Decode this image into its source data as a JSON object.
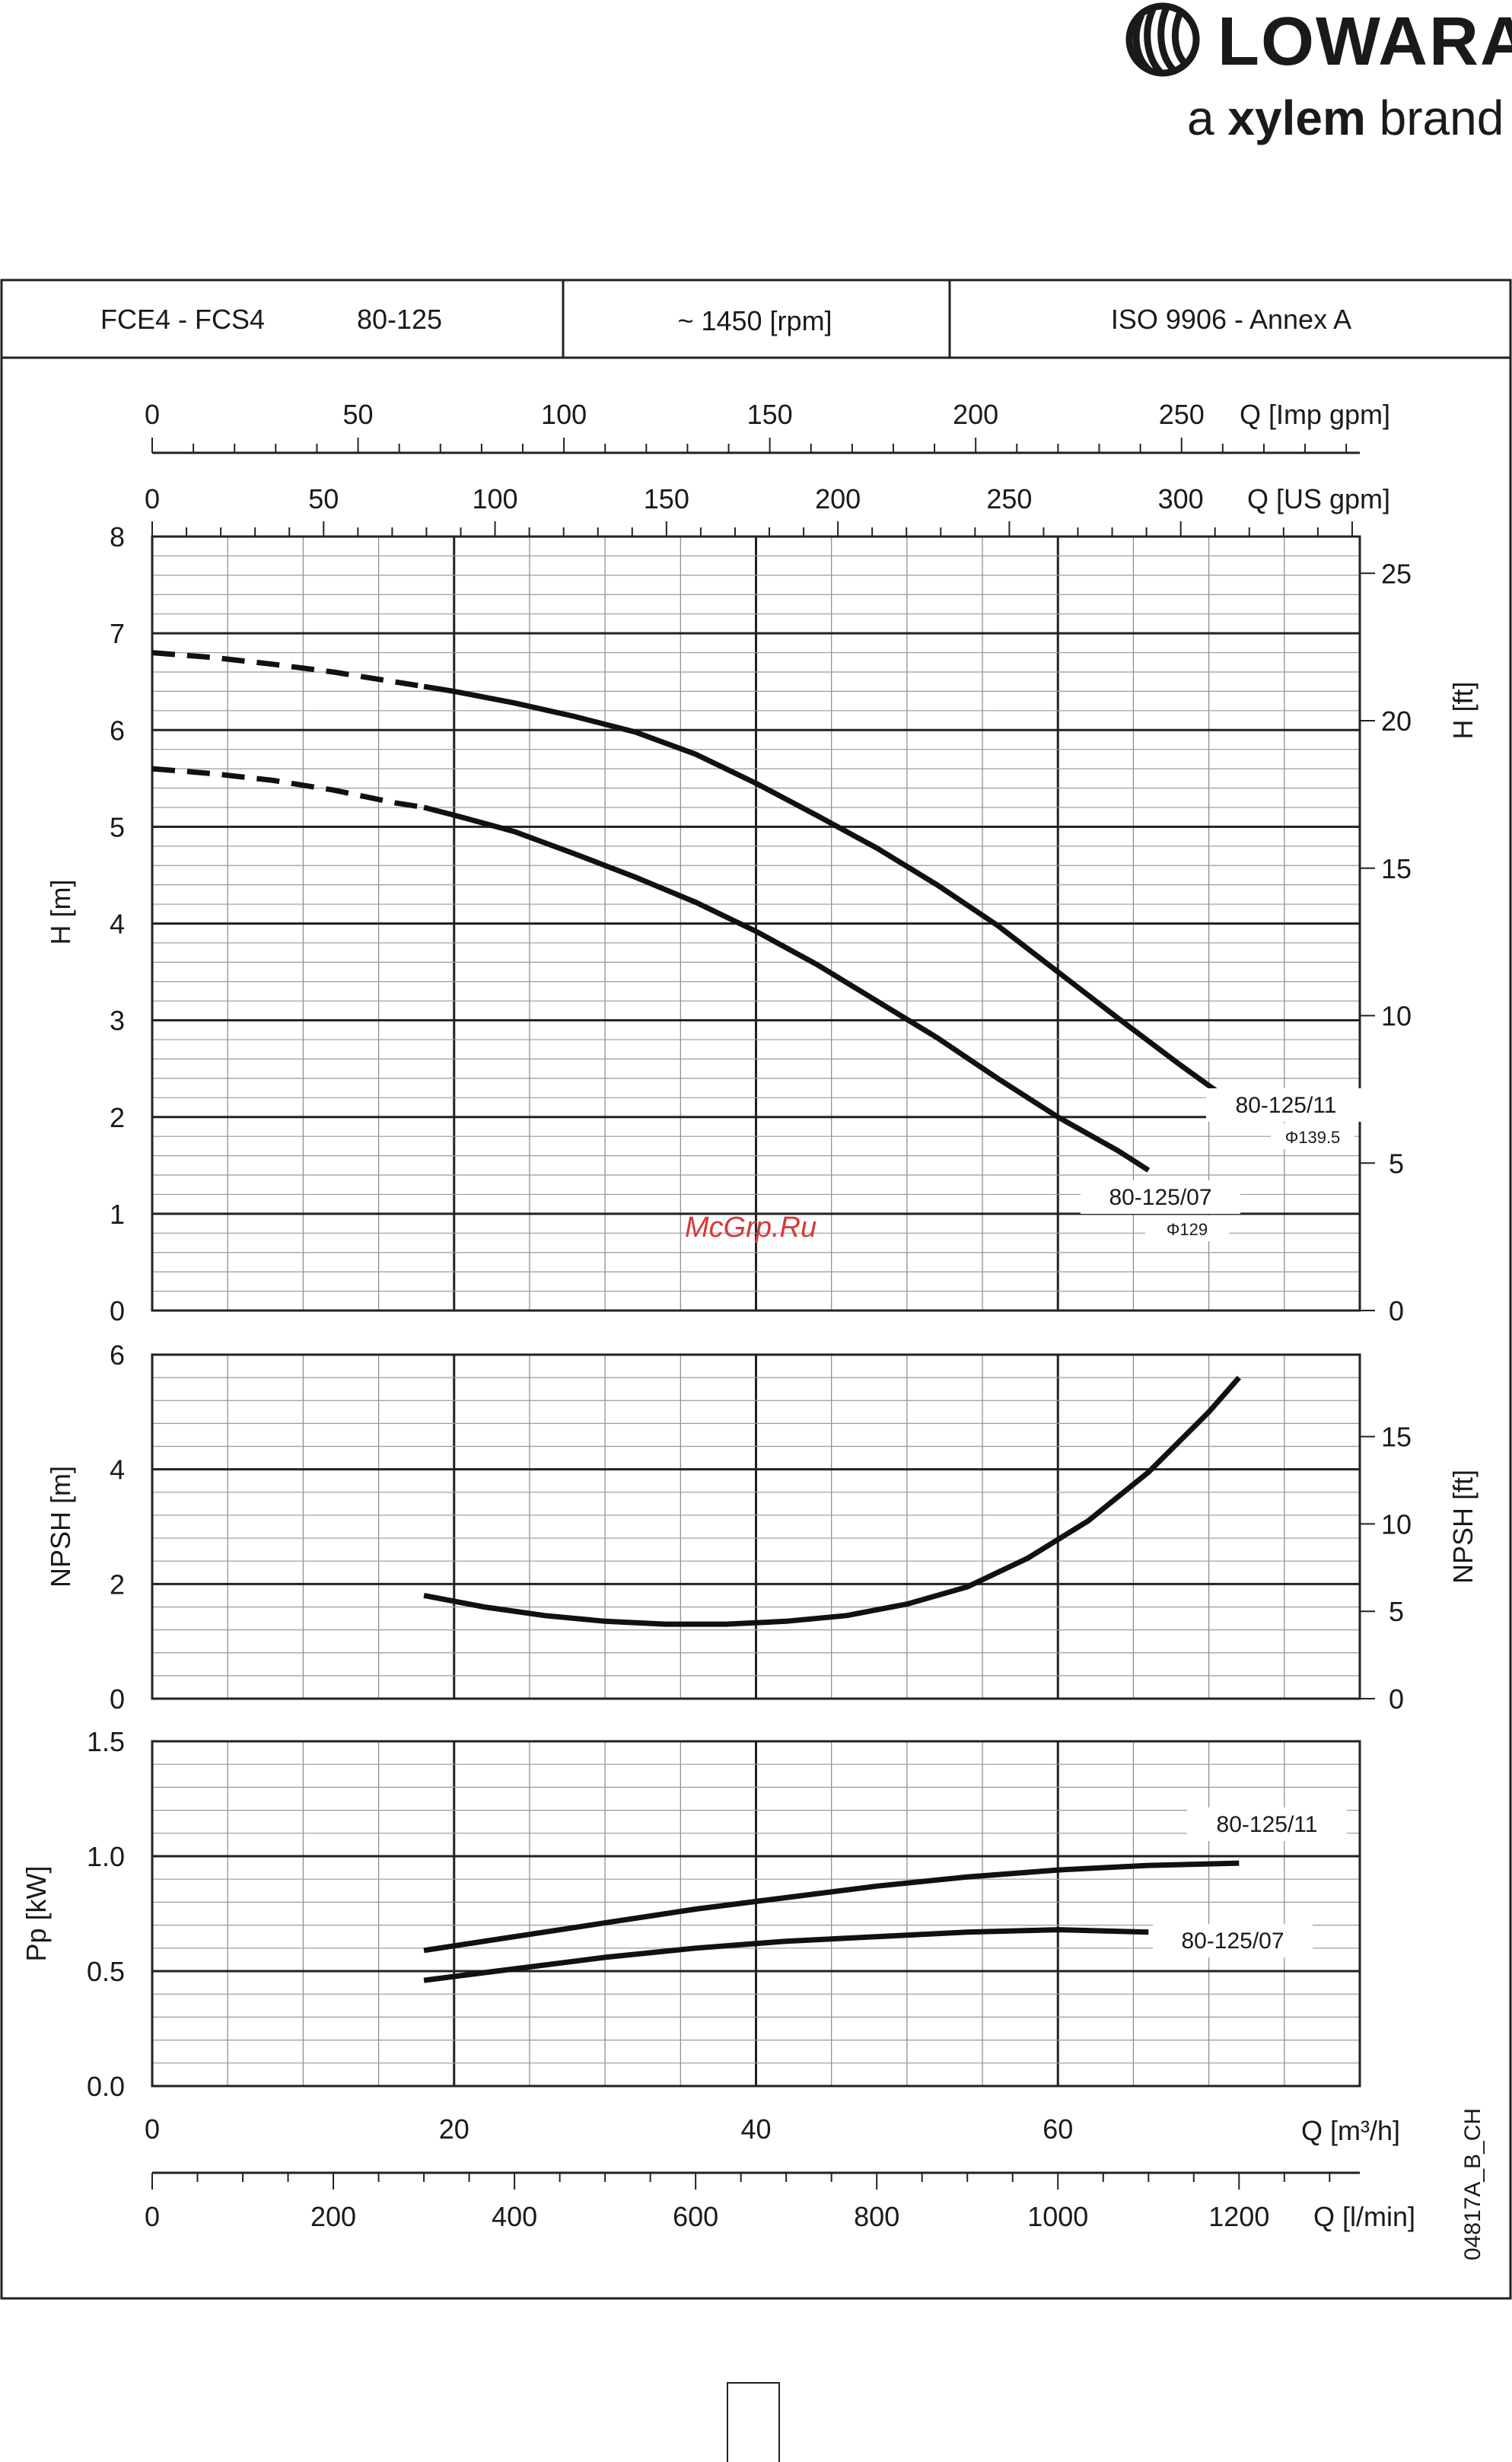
{
  "brand": {
    "name": "LOWARA",
    "tagline_prefix": "a",
    "tagline_brand": "xylem",
    "tagline_suffix": "brand",
    "logo_icon": "lowara-swirl-icon"
  },
  "header": {
    "model": "FCE4 - FCS4",
    "size": "80-125",
    "speed": "~ 1450 [rpm]",
    "standard": "ISO 9906 - Annex A"
  },
  "watermark": "McGrp.Ru",
  "doc_code": "04817A_B_CH",
  "axes": {
    "imp_gpm": {
      "label": "Q [Imp gpm]",
      "ticks": [
        0,
        50,
        100,
        150,
        200,
        250
      ],
      "factor_per_m3h": 3.6662
    },
    "us_gpm": {
      "label": "Q [US gpm]",
      "ticks": [
        0,
        50,
        100,
        150,
        200,
        250,
        300
      ],
      "factor_per_m3h": 4.4029
    },
    "m3h": {
      "label": "Q [m³/h]",
      "ticks": [
        0,
        20,
        40,
        60
      ],
      "range": [
        0,
        80
      ]
    },
    "lmin": {
      "label": "Q [l/min]",
      "ticks": [
        0,
        200,
        400,
        600,
        800,
        1000,
        1200
      ],
      "factor_per_m3h": 16.6667
    }
  },
  "chart_data": [
    {
      "type": "line",
      "ylabel": "H [m]",
      "y2label": "H [ft]",
      "xlim": [
        0,
        80
      ],
      "ylim": [
        0,
        8
      ],
      "yticks": [
        0,
        1,
        2,
        3,
        4,
        5,
        6,
        7,
        8
      ],
      "y2ticks": [
        0,
        5,
        10,
        15,
        20,
        25
      ],
      "y2_factor": 3.2808,
      "series": [
        {
          "name": "80-125/11",
          "sublabel": "Φ139.5",
          "dashed_until": 18,
          "x": [
            0,
            4,
            8,
            12,
            16,
            18,
            20,
            24,
            28,
            32,
            36,
            40,
            44,
            48,
            52,
            56,
            60,
            64,
            68,
            72
          ],
          "y": [
            6.8,
            6.75,
            6.68,
            6.6,
            6.5,
            6.45,
            6.4,
            6.28,
            6.14,
            5.98,
            5.75,
            5.45,
            5.12,
            4.78,
            4.4,
            3.98,
            3.5,
            3.02,
            2.55,
            2.1
          ]
        },
        {
          "name": "80-125/07",
          "sublabel": "Φ129",
          "dashed_until": 18,
          "x": [
            0,
            4,
            8,
            12,
            16,
            18,
            20,
            24,
            28,
            32,
            36,
            40,
            44,
            48,
            52,
            56,
            60,
            64,
            66
          ],
          "y": [
            5.6,
            5.55,
            5.48,
            5.38,
            5.25,
            5.2,
            5.12,
            4.95,
            4.72,
            4.48,
            4.22,
            3.92,
            3.58,
            3.2,
            2.82,
            2.4,
            2.0,
            1.65,
            1.45
          ]
        }
      ]
    },
    {
      "type": "line",
      "ylabel": "NPSH [m]",
      "y2label": "NPSH [ft]",
      "xlim": [
        0,
        80
      ],
      "ylim": [
        0,
        6
      ],
      "yticks": [
        0,
        2,
        4,
        6
      ],
      "y2ticks": [
        0,
        5,
        10,
        15
      ],
      "y2_factor": 3.2808,
      "series": [
        {
          "x": [
            18,
            22,
            26,
            30,
            34,
            38,
            42,
            46,
            50,
            54,
            58,
            62,
            66,
            70,
            72
          ],
          "y": [
            1.8,
            1.6,
            1.45,
            1.35,
            1.3,
            1.3,
            1.35,
            1.45,
            1.65,
            1.95,
            2.45,
            3.1,
            3.95,
            5.0,
            5.6
          ]
        }
      ]
    },
    {
      "type": "line",
      "ylabel": "Pp [kW]",
      "xlim": [
        0,
        80
      ],
      "ylim": [
        0,
        1.5
      ],
      "yticks": [
        0.0,
        0.5,
        1.0,
        1.5
      ],
      "ytick_labels": [
        "0.0",
        "0.5",
        "1.0",
        "1.5"
      ],
      "series": [
        {
          "name": "80-125/11",
          "x": [
            18,
            24,
            30,
            36,
            42,
            48,
            54,
            60,
            66,
            72
          ],
          "y": [
            0.59,
            0.65,
            0.71,
            0.77,
            0.82,
            0.87,
            0.91,
            0.94,
            0.96,
            0.97
          ]
        },
        {
          "name": "80-125/07",
          "x": [
            18,
            24,
            30,
            36,
            42,
            48,
            54,
            60,
            66
          ],
          "y": [
            0.46,
            0.51,
            0.56,
            0.6,
            0.63,
            0.65,
            0.67,
            0.68,
            0.67
          ]
        }
      ]
    }
  ]
}
